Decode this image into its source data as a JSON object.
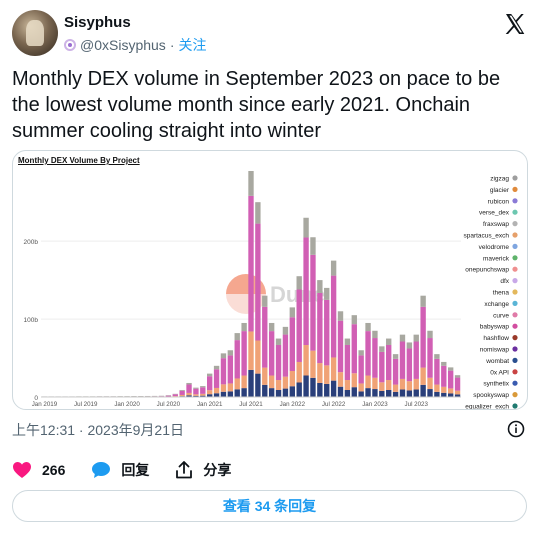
{
  "author": {
    "display_name": "Sisyphus",
    "handle": "@0xSisyphus",
    "separator": "·",
    "follow_label": "关注"
  },
  "tweet": {
    "text": "Monthly DEX volume in September 2023 on pace to be the lowest volume month since early 2021. Onchain summer cooling straight into winter"
  },
  "timestamp": "上午12:31 · 2023年9月21日",
  "actions": {
    "like_count": "266",
    "reply_label": "回复",
    "share_label": "分享"
  },
  "replies_button": "查看 34 条回复",
  "colors": {
    "accent": "#1d9bf0",
    "like": "#f91880",
    "reply": "#1d9bf0",
    "muted": "#536471",
    "border": "#cfd9de"
  },
  "icons": [
    "x-logo-icon",
    "info-icon",
    "heart-icon",
    "reply-bubble-icon",
    "share-icon"
  ],
  "chart_data": {
    "type": "bar",
    "stacked": true,
    "title": "Monthly DEX Volume By Project",
    "watermark": "Dune",
    "ylabel": "",
    "xlabel": "",
    "ylim": [
      0,
      290
    ],
    "y_unit": "b",
    "y_ticks": [
      "0",
      "100b",
      "200b"
    ],
    "y_tick_values": [
      0,
      100,
      200
    ],
    "x_ticks": [
      "Jan 2019",
      "Jul 2019",
      "Jan 2020",
      "Jul 2020",
      "Jan 2021",
      "Jul 2021",
      "Jan 2022",
      "Jul 2022",
      "Jan 2023",
      "Jul 2023"
    ],
    "x_tick_index": [
      0,
      6,
      12,
      18,
      24,
      30,
      36,
      42,
      48,
      54
    ],
    "legend_position": "right",
    "series": [
      {
        "name": "zigzag",
        "color": "#9e9e9e"
      },
      {
        "name": "glacier",
        "color": "#e08a3c"
      },
      {
        "name": "rubicon",
        "color": "#8a7ad6"
      },
      {
        "name": "verse_dex",
        "color": "#6cc7b0"
      },
      {
        "name": "fraxswap",
        "color": "#b3b3b3"
      },
      {
        "name": "spartacus_exch",
        "color": "#e6a06a"
      },
      {
        "name": "velodrome",
        "color": "#7fa6e0"
      },
      {
        "name": "maverick",
        "color": "#5fb36b"
      },
      {
        "name": "onepunchswap",
        "color": "#ef8f8f"
      },
      {
        "name": "dfx",
        "color": "#c8a8e8"
      },
      {
        "name": "thena",
        "color": "#e3b85c"
      },
      {
        "name": "xchange",
        "color": "#5ab5d6"
      },
      {
        "name": "curve",
        "color": "#e07ba8"
      },
      {
        "name": "babyswap",
        "color": "#d24da0"
      },
      {
        "name": "hashflow",
        "color": "#9a3a2a"
      },
      {
        "name": "nomiswap",
        "color": "#6b2fa0"
      },
      {
        "name": "wombat",
        "color": "#2a4f8f"
      },
      {
        "name": "0x API",
        "color": "#c94343"
      },
      {
        "name": "synthetix",
        "color": "#3a5bb0"
      },
      {
        "name": "spookyswap",
        "color": "#d99a3a"
      },
      {
        "name": "equalizer_exch",
        "color": "#1f7a70"
      }
    ],
    "monthly_totals": [
      0.3,
      0.3,
      0.3,
      0.3,
      0.3,
      0.4,
      0.4,
      0.4,
      0.5,
      0.5,
      0.5,
      0.6,
      0.6,
      0.7,
      0.8,
      0.9,
      1.0,
      1.2,
      2,
      4,
      9,
      18,
      12,
      14,
      30,
      40,
      56,
      60,
      82,
      95,
      290,
      250,
      130,
      95,
      75,
      90,
      115,
      155,
      230,
      205,
      150,
      140,
      175,
      110,
      75,
      105,
      60,
      95,
      85,
      65,
      75,
      55,
      80,
      70,
      80,
      130,
      85,
      55,
      45,
      38,
      28
    ],
    "stack_shares": {
      "pink_main": 0.6,
      "orange": 0.17,
      "navy_base": 0.12,
      "grey_top": 0.11
    }
  }
}
